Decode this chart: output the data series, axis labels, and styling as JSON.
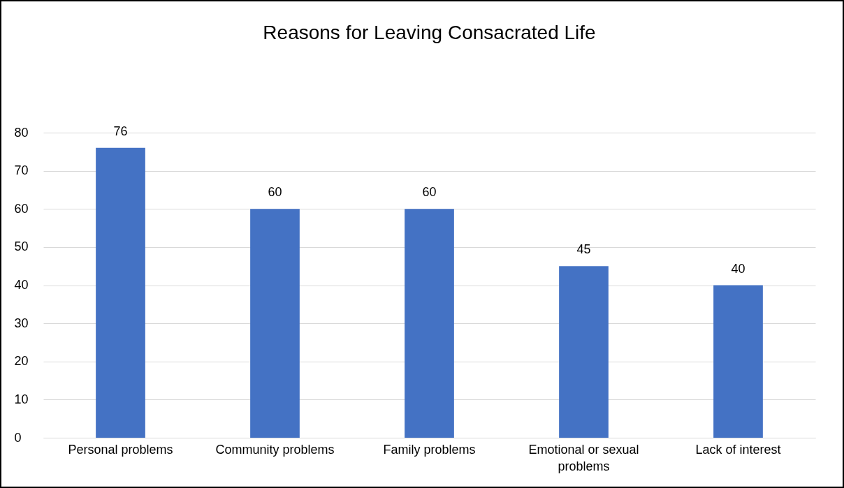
{
  "chart_data": {
    "type": "bar",
    "title": "Reasons for Leaving Consacrated Life",
    "categories": [
      "Personal problems",
      "Community problems",
      "Family problems",
      "Emotional or sexual problems",
      "Lack of interest"
    ],
    "values": [
      76,
      60,
      60,
      45,
      40
    ],
    "color": "#4472c4",
    "ylim": [
      0,
      80
    ],
    "yticks": [
      0,
      10,
      20,
      30,
      40,
      50,
      60,
      70,
      80
    ],
    "grid": "y",
    "data_labels": true
  }
}
